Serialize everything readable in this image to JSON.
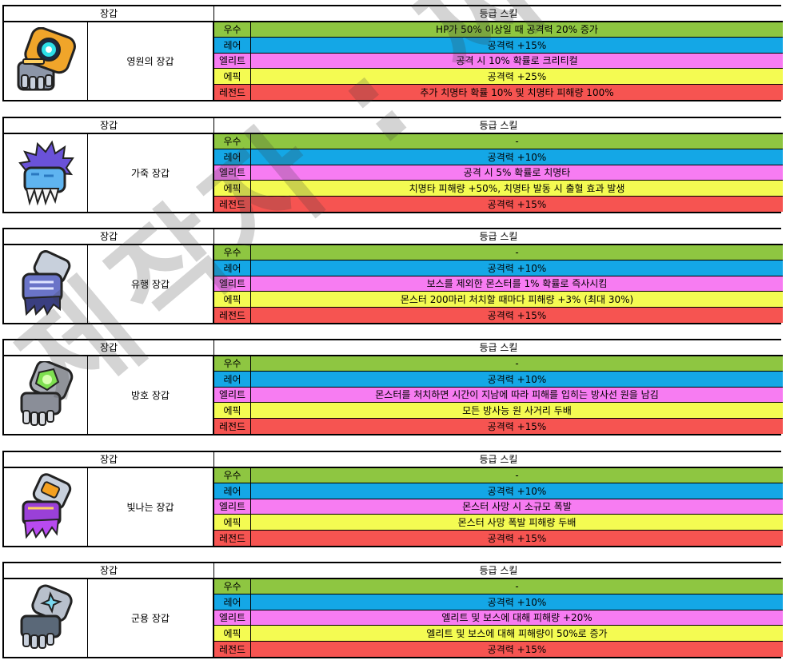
{
  "headers": {
    "item": "장갑",
    "skill": "등급 스킬"
  },
  "grades": {
    "uncommon": "우수",
    "rare": "레어",
    "elite": "엘리트",
    "epic": "에픽",
    "legend": "레전드"
  },
  "colors": {
    "uncommon": "#8ec641",
    "rare": "#14a7e6",
    "elite": "#f77cf2",
    "epic": "#f4fb52",
    "legend": "#f65451"
  },
  "items": [
    {
      "name": "영원의 장갑",
      "icon": "golden-gauntlet-icon",
      "skills": [
        "HP가 50% 이상일 때 공격력 20% 증가",
        "공격력 +15%",
        "공격 시 10% 확률로 크리티컬",
        "공격력 +25%",
        "추가 치명타 확률 10% 및 치명타 피해량 100%"
      ]
    },
    {
      "name": "가죽 장갑",
      "icon": "fur-glove-icon",
      "skills": [
        "-",
        "공격력 +10%",
        "공격 시 5% 확률로 치명타",
        "치명타 피해량 +50%, 치명타 발동 시 출혈 효과 발생",
        "공격력 +15%"
      ]
    },
    {
      "name": "유행 장갑",
      "icon": "trendy-glove-icon",
      "skills": [
        "-",
        "공격력 +10%",
        "보스를 제외한 몬스터를 1% 확률로 즉사시킴",
        "몬스터 200마리 처치할 때마다 피해량 +3% (최대 30%)",
        "공격력 +15%"
      ]
    },
    {
      "name": "방호 장갑",
      "icon": "radiation-gauntlet-icon",
      "skills": [
        "-",
        "공격력 +10%",
        "몬스터를 처치하면 시간이 지남에 따라 피해를 입히는 방사선 원을 남김",
        "모든 방사능 원 사거리 두배",
        "공격력 +15%"
      ]
    },
    {
      "name": "빛나는 장갑",
      "icon": "glowing-glove-icon",
      "skills": [
        "-",
        "공격력 +10%",
        "몬스터 사망 시 소규모 폭발",
        "몬스터 사망 폭발 피해량 두배",
        "공격력 +15%"
      ]
    },
    {
      "name": "군용 장갑",
      "icon": "military-glove-icon",
      "skills": [
        "-",
        "공격력 +10%",
        "엘리트 및 보스에 대해 피해량 +20%",
        "엘리트 및 보스에 대해 피해량이 50%로 증가",
        "공격력 +15%"
      ]
    }
  ],
  "watermark": "제작자 : 찌리"
}
